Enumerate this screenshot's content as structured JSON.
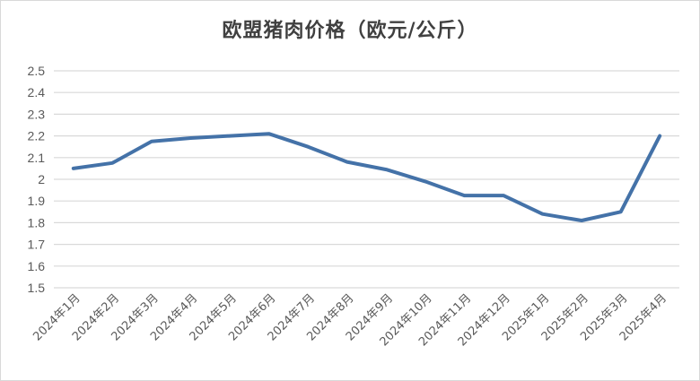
{
  "chart_data": {
    "type": "line",
    "title": "欧盟猪肉价格（欧元/公斤）",
    "xlabel": "",
    "ylabel": "",
    "ylim": [
      1.5,
      2.5
    ],
    "yticks": [
      1.5,
      1.6,
      1.7,
      1.8,
      1.9,
      2.0,
      2.1,
      2.2,
      2.3,
      2.4,
      2.5
    ],
    "ytick_labels": [
      "1.5",
      "1.6",
      "1.7",
      "1.8",
      "1.9",
      "2",
      "2.1",
      "2.2",
      "2.3",
      "2.4",
      "2.5"
    ],
    "grid": "horizontal",
    "legend": "none",
    "categories": [
      "2024年1月",
      "2024年2月",
      "2024年3月",
      "2024年4月",
      "2024年5月",
      "2024年6月",
      "2024年7月",
      "2024年8月",
      "2024年9月",
      "2024年10月",
      "2024年11月",
      "2024年12月",
      "2025年1月",
      "2025年2月",
      "2025年3月",
      "2025年4月"
    ],
    "series": [
      {
        "name": "欧盟猪肉价格",
        "color": "#4472a8",
        "values": [
          2.05,
          2.075,
          2.175,
          2.19,
          2.2,
          2.21,
          2.15,
          2.08,
          2.045,
          1.99,
          1.925,
          1.925,
          1.84,
          1.81,
          1.85,
          2.2
        ]
      }
    ]
  },
  "colors": {
    "line": "#4472a8",
    "grid": "#d9d9d9",
    "text": "#595959",
    "title": "#404040"
  }
}
